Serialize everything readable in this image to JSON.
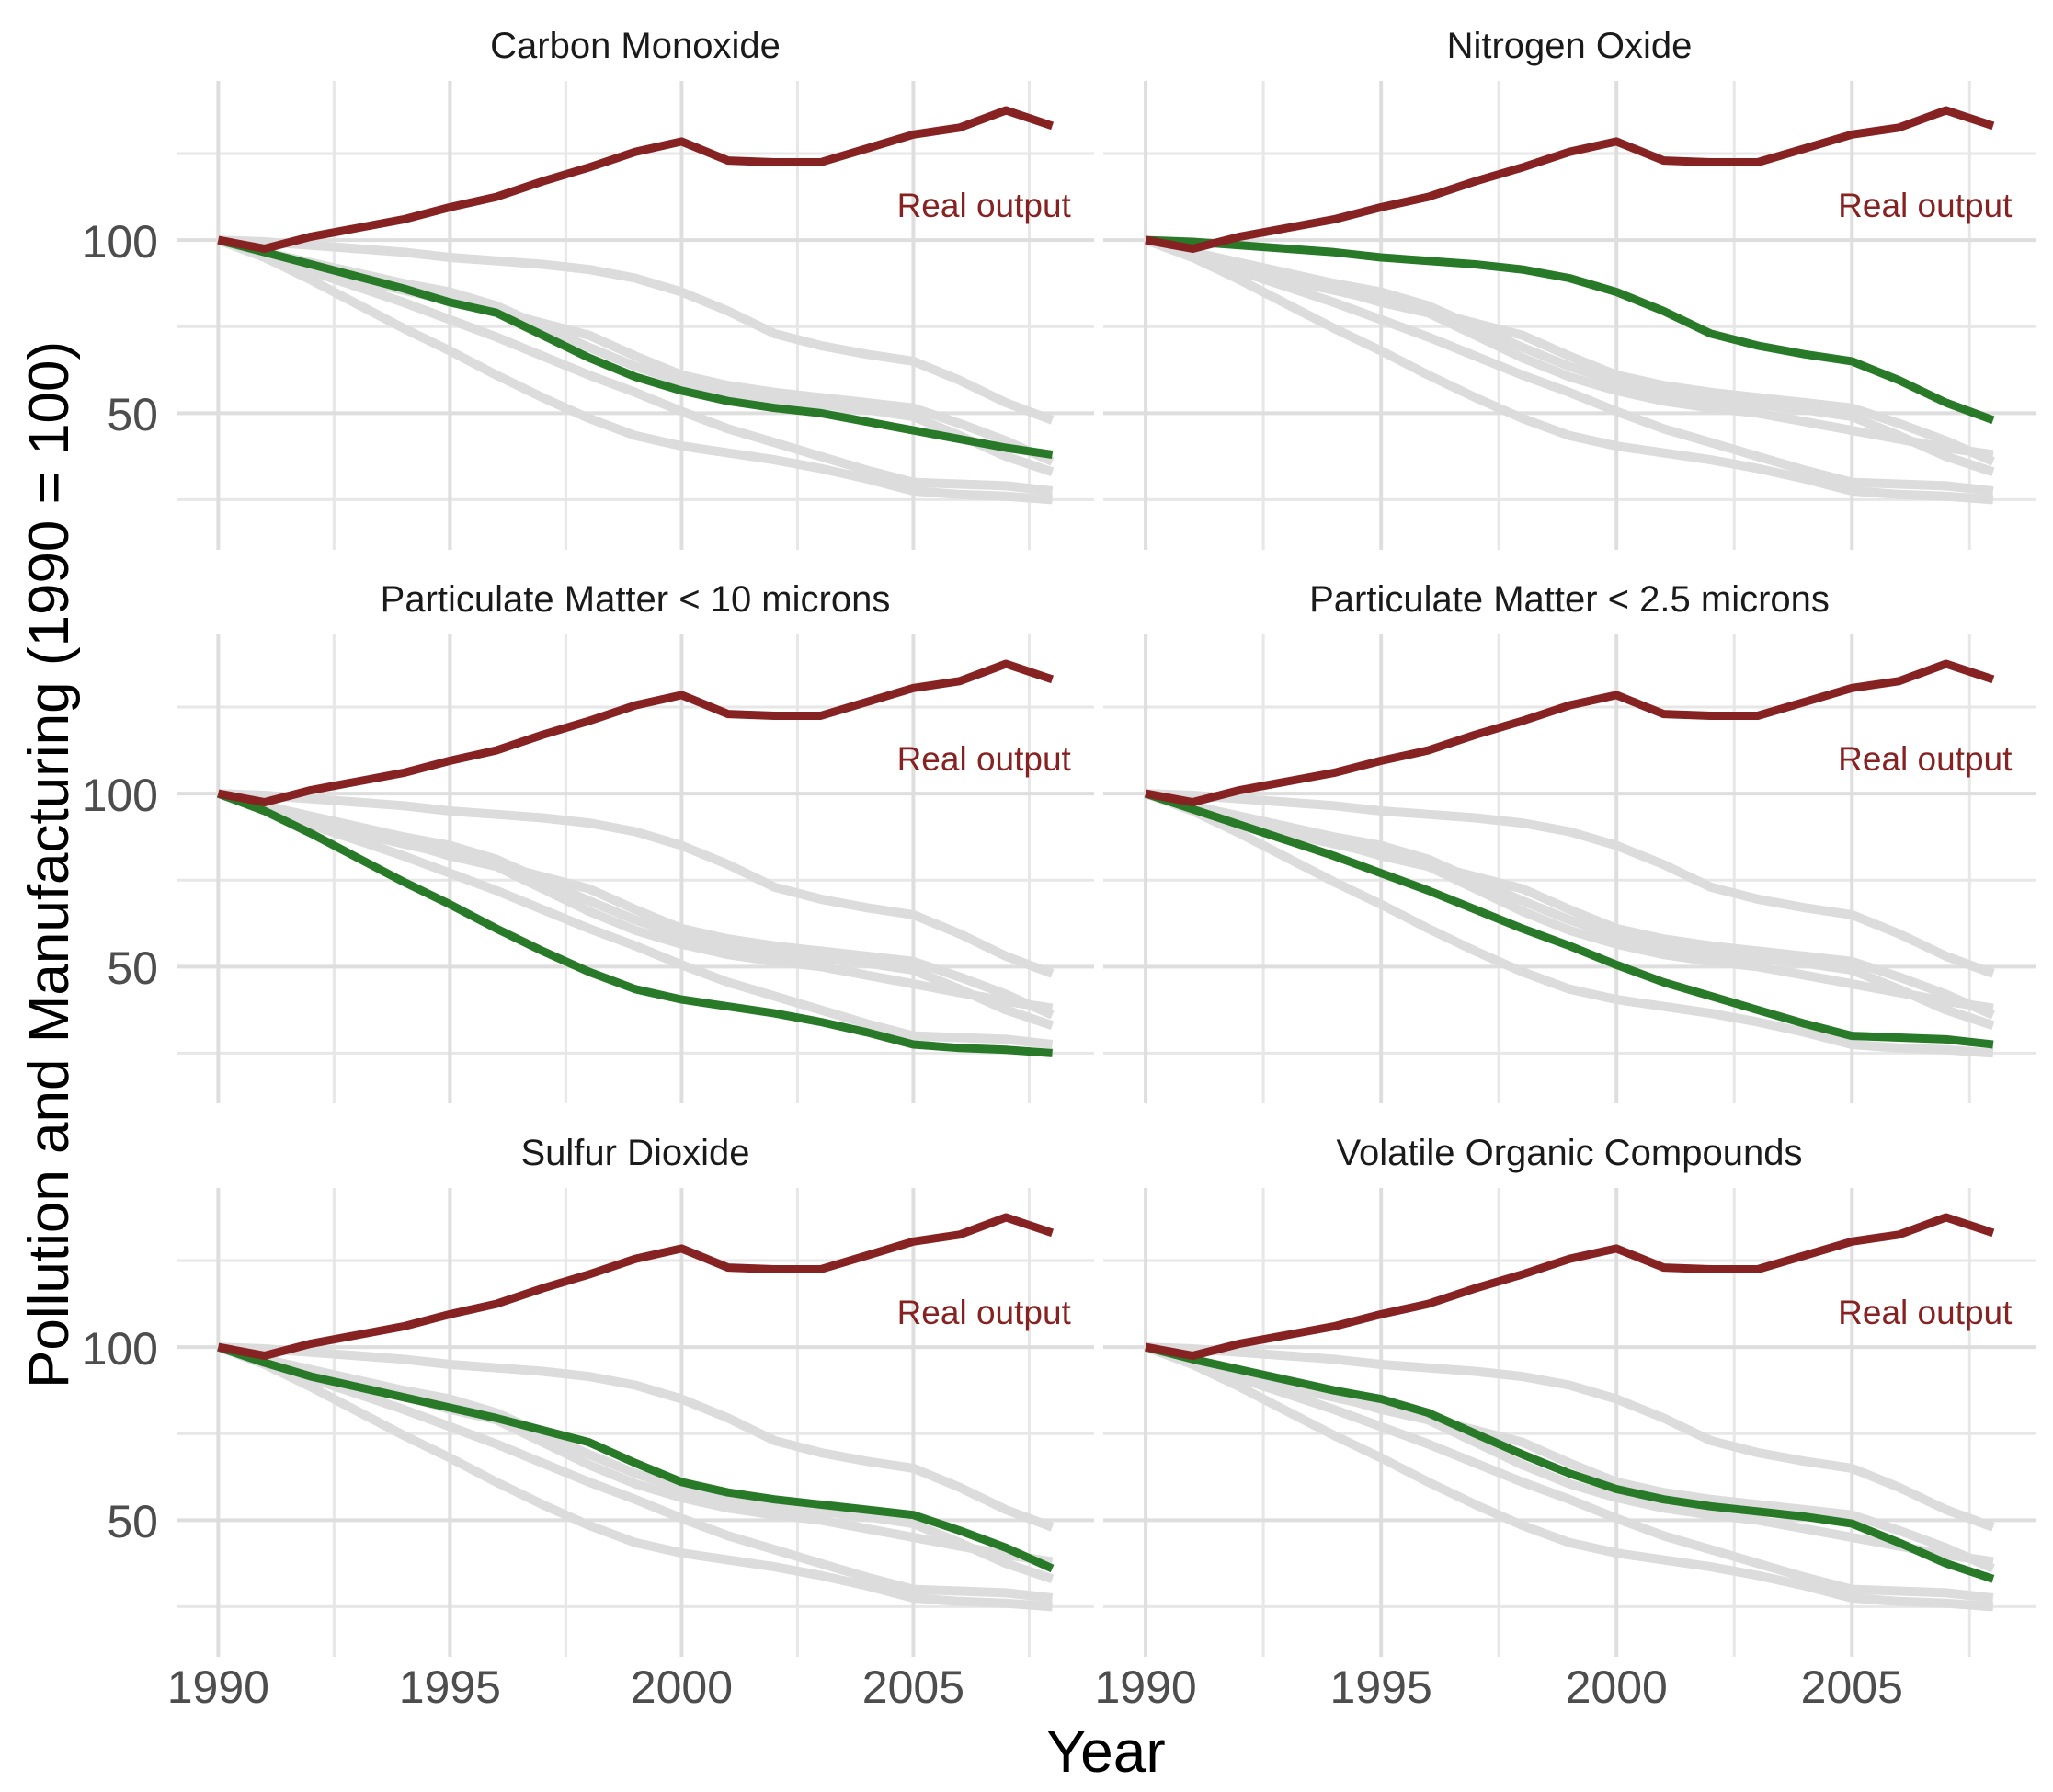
{
  "figure": {
    "ylabel": "Pollution and Manufacturing (1990 = 100)",
    "xlabel": "Year",
    "annotation_label": "Real output",
    "colors": {
      "real_output": "#872222",
      "highlight": "#287A28",
      "other_series": "#DCDCDC",
      "grid_major": "#DEDEDE",
      "grid_minor": "#E7E7E7",
      "tick_label": "#4D4D4D",
      "facet_title": "#1A1A1A",
      "axis_label": "#000000",
      "background": "#FFFFFF"
    }
  },
  "chart_data": {
    "type": "line",
    "title": "",
    "xlabel": "Year",
    "ylabel": "Pollution and Manufacturing (1990 = 100)",
    "x": [
      1990,
      1991,
      1992,
      1993,
      1994,
      1995,
      1996,
      1997,
      1998,
      1999,
      2000,
      2001,
      2002,
      2003,
      2004,
      2005,
      2006,
      2007,
      2008
    ],
    "x_ticks": [
      1990,
      1995,
      2000,
      2005
    ],
    "y_ticks": [
      50,
      100
    ],
    "grid_minor_x": [
      1992.5,
      1997.5,
      2002.5,
      2007.5
    ],
    "grid_minor_y": [
      25,
      75,
      125
    ],
    "xlim": [
      1989.1,
      2008.9
    ],
    "ylim": [
      10.5,
      146
    ],
    "legend_position": "none",
    "grid": "on",
    "annotation": {
      "label": "Real output",
      "x": 2008.4,
      "y": 109.5
    },
    "facets": [
      {
        "title": "Carbon Monoxide",
        "highlight": "co"
      },
      {
        "title": "Nitrogen Oxide",
        "highlight": "nox"
      },
      {
        "title": "Particulate Matter < 10 microns",
        "highlight": "pm10"
      },
      {
        "title": "Particulate Matter < 2.5 microns",
        "highlight": "pm25"
      },
      {
        "title": "Sulfur Dioxide",
        "highlight": "so2"
      },
      {
        "title": "Volatile Organic Compounds",
        "highlight": "voc"
      }
    ],
    "series": {
      "real_output": {
        "label": "Real output",
        "values": [
          100,
          97.5,
          101,
          103.5,
          106,
          109.5,
          112.5,
          117,
          121,
          125.5,
          128.5,
          123,
          122.5,
          122.5,
          126.5,
          130.5,
          132.5,
          137.5,
          133
        ]
      },
      "co": {
        "label": "Carbon Monoxide",
        "values": [
          100,
          96.5,
          93,
          89.5,
          86,
          82,
          79,
          72.5,
          66,
          60.5,
          56.5,
          53.5,
          51.5,
          50,
          47.5,
          45,
          42.5,
          40,
          38
        ]
      },
      "nox": {
        "label": "Nitrogen Oxide",
        "values": [
          100,
          99.5,
          98.5,
          97.5,
          96.5,
          95,
          94,
          93,
          91.5,
          89,
          85,
          79.5,
          73,
          69.5,
          67,
          65,
          59.5,
          53,
          48
        ]
      },
      "pm10": {
        "label": "Particulate Matter < 10 microns",
        "values": [
          100,
          95,
          88.5,
          81.5,
          74.5,
          68,
          61,
          54.5,
          48.5,
          43.5,
          40.5,
          38.5,
          36.5,
          34,
          31,
          27.5,
          26.5,
          26,
          25
        ]
      },
      "pm25": {
        "label": "Particulate Matter < 2.5 microns",
        "values": [
          100,
          95.5,
          91,
          86.5,
          82,
          77,
          72,
          66.5,
          61,
          56,
          50.5,
          45.5,
          41.5,
          37.5,
          33.5,
          30,
          29.5,
          29,
          27.5
        ]
      },
      "so2": {
        "label": "Sulfur Dioxide",
        "values": [
          100,
          95.5,
          91.5,
          88.5,
          85.5,
          82.5,
          79.5,
          76,
          72.5,
          66.5,
          61,
          58,
          56,
          54.5,
          53,
          51.5,
          47,
          42,
          36
        ]
      },
      "voc": {
        "label": "Volatile Organic Compounds",
        "values": [
          100,
          96.5,
          93.5,
          90.5,
          87.5,
          85,
          81,
          75,
          69,
          63.5,
          59,
          56,
          54,
          52.5,
          51,
          49,
          43.5,
          37.5,
          33
        ]
      }
    },
    "gray_draw_order": [
      "nox",
      "so2",
      "voc",
      "co",
      "pm25",
      "pm10"
    ]
  }
}
